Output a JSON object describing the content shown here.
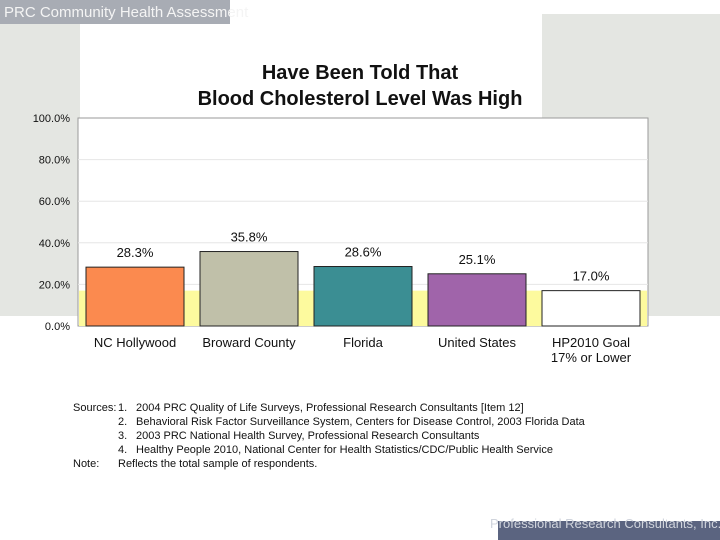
{
  "header": {
    "title": "PRC Community Health Assessment"
  },
  "chart_data": {
    "type": "bar",
    "title_lines": [
      "Have Been Told That",
      "Blood Cholesterol Level Was High"
    ],
    "categories": [
      {
        "label": "NC Hollywood",
        "sublabel": ""
      },
      {
        "label": "Broward County",
        "sublabel": ""
      },
      {
        "label": "Florida",
        "sublabel": ""
      },
      {
        "label": "United States",
        "sublabel": ""
      },
      {
        "label": "HP2010 Goal",
        "sublabel": "17% or Lower"
      }
    ],
    "values": [
      28.3,
      35.8,
      28.6,
      25.1,
      17.0
    ],
    "value_labels": [
      "28.3%",
      "35.8%",
      "28.6%",
      "25.1%",
      "17.0%"
    ],
    "colors": [
      "#fb8a4f",
      "#c0c0a9",
      "#3b8e93",
      "#a064aa",
      "#ffffff"
    ],
    "highlight_band_color": "#fdfa9e",
    "ylim": [
      0,
      100
    ],
    "yticks": [
      0,
      20,
      40,
      60,
      80,
      100
    ],
    "ytick_labels": [
      "0.0%",
      "20.0%",
      "40.0%",
      "60.0%",
      "80.0%",
      "100.0%"
    ],
    "xlabel": "",
    "ylabel": ""
  },
  "sources": {
    "heading": "Sources:",
    "items": [
      {
        "num": "1.",
        "text": "2004 PRC Quality of Life Surveys, Professional Research Consultants [Item 12]"
      },
      {
        "num": "2.",
        "text": "Behavioral Risk Factor Surveillance System, Centers for Disease Control, 2003 Florida Data"
      },
      {
        "num": "3.",
        "text": "2003 PRC National Health Survey, Professional Research Consultants"
      },
      {
        "num": "4.",
        "text": "Healthy People 2010, National Center for Health Statistics/CDC/Public Health Service"
      }
    ],
    "note_heading": "Note:",
    "note_text": "Reflects the total sample of respondents."
  },
  "footer": {
    "text": "Professional Research Consultants, Inc."
  }
}
